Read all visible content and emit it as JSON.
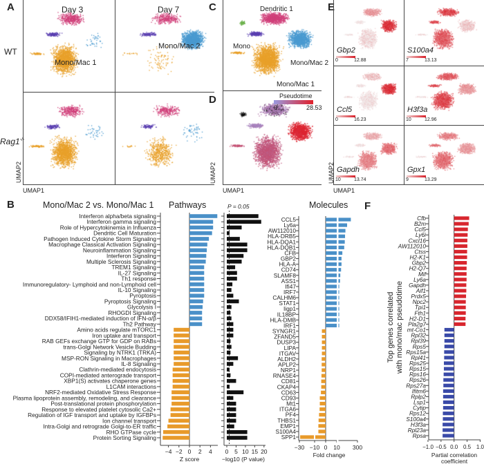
{
  "panel_labels": {
    "A": "A",
    "B": "B",
    "C": "C",
    "D": "D",
    "E": "E",
    "F": "F"
  },
  "panelA": {
    "col1": "Day 3",
    "col2": "Day 7",
    "row1": "WT",
    "row2": "Rag1",
    "row2_sup": "-/-",
    "cluster1": "Mono/Mac 1",
    "cluster2": "Mono/Mac 2",
    "xlabel": "UMAP1",
    "ylabel": "UMAP2"
  },
  "panelC": {
    "labels": [
      "Dendritic 1",
      "Mono",
      "Mono/Mac 2",
      "Mono/Mac 1"
    ]
  },
  "panelD": {
    "legend_title": "Pseudotime",
    "legend_min": "0",
    "legend_max": "28.53",
    "xlabel": "UMAP1",
    "ylabel": "UMAP2",
    "low_color": "#9a9ae0",
    "high_color": "#e0202a"
  },
  "panelE": {
    "xlabel": "UMAP1",
    "ylabel": "UMAP2",
    "genes": [
      {
        "name": "Gbp2",
        "min": "0",
        "max": "12.88"
      },
      {
        "name": "S100a4",
        "min": "7",
        "max": "13.13"
      },
      {
        "name": "Ccl5",
        "min": "0",
        "max": "16.23"
      },
      {
        "name": "H3f3a",
        "min": "10",
        "max": "12.96"
      },
      {
        "name": "Gapdh",
        "min": "10",
        "max": "13.74"
      },
      {
        "name": "Gpx1",
        "min": "9",
        "max": "13.29"
      }
    ]
  },
  "cluster_colors": {
    "Mono/Mac 1": "#e8a02a",
    "Mono/Mac 2": "#4a9ad0",
    "Dendritic 1": "#d0407a",
    "Mono": "#5a3fb0",
    "Other": "#6ab04a"
  },
  "chart_data": [
    {
      "type": "bar",
      "orientation": "horizontal",
      "title": "Mono/Mac 2 vs. Mono/Mac 1",
      "subtitle": "Pathways",
      "xlabel": "Z score",
      "xlim": [
        -5,
        5
      ],
      "xticks": [
        "-4",
        "-2",
        "0",
        "2",
        "4"
      ],
      "categories": [
        "Interferon alpha/beta signaling",
        "Interferon gamma signaling",
        "Role of Hypercytokinemia in Influenza",
        "Dendritic Cell Maturation",
        "Pathogen Induced Cytokine Storm Signaling",
        "Macrophage Classical Activation Signaling",
        "Neuroinflammation Signaling",
        "Interferon Signaling",
        "Multiple Sclerosis Signaling",
        "TREM1 Signaling",
        "IL-27 Signaling",
        "Th1 response",
        "Immunoregulatory- Lymphoid and non-Lymphoid cell",
        "IL-10 Signaling",
        "Pyroptosis",
        "Pyroptosis Signaling",
        "Glycolysis I",
        "RHOGDI Signaling",
        "DDX58/IFIH1-mediated induction of IFN-α/β",
        "Th2 Pathway",
        "Amino acids regulate mTORC1",
        "Iron uptake and transport",
        "RAB GEFs exchange GTP for GDP on RABs",
        "trans-Golgi Network Vesicle Budding",
        "Signaling by NTRK1 (TRKA)",
        "MSP-RON Signaling in Macrophages",
        "IL-8 Signaling",
        "Clathrin-mediated endocytosis",
        "COPI-mediated anterograde transport",
        "XBP1(S) activates chaperone genes",
        "L1CAM interactions",
        "NRF2-mediated Oxidative Stress Response",
        "Plasma lipoprotein assembly, remodeling, and clearance",
        "Post-translational protein phosphorylation",
        "Response to elevated platelet cytosolic Ca2+",
        "Regulation of IGF transport and uptake by IGFBPs",
        "Ion channel transport",
        "Intra-Golgi and retrograde Golgi-to-ER traffic",
        "RHO GTPase cycle",
        "Protein Sorting Signaling"
      ],
      "values": [
        5.3,
        4.5,
        4.5,
        4.3,
        3.7,
        3.4,
        3.3,
        3.2,
        3.1,
        2.8,
        2.8,
        2.8,
        2.8,
        2.8,
        2.8,
        2.6,
        2.5,
        2.4,
        2.4,
        2.4,
        -3.0,
        -3.0,
        -3.0,
        -3.0,
        -3.0,
        -3.0,
        -3.0,
        -3.2,
        -3.2,
        -3.2,
        -3.2,
        -3.4,
        -3.4,
        -3.4,
        -3.6,
        -3.6,
        -4.0,
        -4.2,
        -5.0,
        -5.1
      ],
      "pos_color": "#4a90c8",
      "neg_color": "#e89a2a"
    },
    {
      "type": "bar",
      "orientation": "horizontal",
      "xlabel": "−log10 (P value)",
      "annotation": "P = 0.05",
      "threshold": 1.3,
      "xlim": [
        0,
        20
      ],
      "xticks": [
        "0",
        "5",
        "10",
        "15",
        "20"
      ],
      "values": [
        17,
        18.5,
        8,
        1.5,
        7,
        11,
        11,
        9,
        8,
        4.5,
        5.5,
        5.5,
        3,
        2.5,
        3.5,
        6.5,
        2.5,
        2,
        2.5,
        3.5,
        3.5,
        3.5,
        2,
        2.5,
        2,
        6,
        3.5,
        1.5,
        2,
        5,
        1.5,
        9,
        3.5,
        5,
        5,
        5,
        5,
        4,
        11,
        11
      ],
      "color": "#111111"
    },
    {
      "type": "bar",
      "orientation": "horizontal",
      "title": "Molecules",
      "xlabel": "Fold change",
      "axis_break": true,
      "xticks": [
        "-30",
        "-10",
        "0",
        "10",
        "300"
      ],
      "categories": [
        "CCL5",
        "Ly6a",
        "AW112010",
        "HLA-DRB5",
        "HLA-DQA1",
        "HLA-DQB1",
        "CFB",
        "GBP2",
        "HLA-A",
        "CD74",
        "SLAMF8",
        "ASS1",
        "Ifi47",
        "IRF7",
        "CALHM6",
        "STAT1",
        "Iigp1",
        "IL18BP",
        "HLA-DMB",
        "IRF1",
        "SYNGR1",
        "ZFAND5",
        "DUSP3",
        "LIPA",
        "ITGAV",
        "ALDH2",
        "APLP2",
        "NRP1",
        "RNASE4",
        "CD81",
        "CKAP4",
        "CD63",
        "CD93",
        "Mt1",
        "ITGA6",
        "PF4",
        "THBS1",
        "EMP1",
        "S100A4",
        "SPP1"
      ],
      "values": [
        197,
        139,
        113,
        107,
        103,
        94,
        65,
        52,
        52,
        45,
        33,
        29,
        16,
        16,
        16,
        16,
        16,
        16,
        16,
        16,
        -3.4,
        -3.4,
        -3.4,
        -3.4,
        -3.4,
        -3.6,
        -3.6,
        -3.6,
        -3.8,
        -4,
        -4,
        -4.3,
        -5.3,
        -5.3,
        -5.5,
        -6,
        -6.4,
        -6.6,
        -6.6,
        -29
      ],
      "pos_color": "#4a90c8",
      "neg_color": "#e89a2a"
    },
    {
      "type": "bar",
      "orientation": "horizontal",
      "ylabel": "Top genes correlated with mono/mac pseudotime",
      "xlabel": "Partial correlation coefficient",
      "xlim": [
        -1,
        1
      ],
      "xticks": [
        "-1.0",
        "-0.5",
        "0.0",
        "0.5",
        "1.0"
      ],
      "categories": [
        "Cfb",
        "B2m",
        "Ccl5",
        "Ly6i",
        "Cxcl16",
        "AW112010",
        "Ctss",
        "H2-K1",
        "Gbp2",
        "H2-Q7",
        "Mif",
        "Ly6a",
        "Gapdh",
        "Aif1",
        "Prdx5",
        "Npc2",
        "Tpi1",
        "Fth1",
        "H2-D1",
        "Pla2g7",
        "mt-Co1",
        "Rpl32",
        "Rpl39",
        "Rps5",
        "Rps15a",
        "Rpl41",
        "Rps25",
        "Rps15",
        "Rps16",
        "Rps26",
        "Rps27a",
        "Ifitm6",
        "Rplp2",
        "Lsp1",
        "Cytip",
        "Rps12",
        "S100a4",
        "H3f3a",
        "Rpl23a",
        "Rpsa"
      ],
      "values": [
        0.58,
        0.56,
        0.53,
        0.52,
        0.51,
        0.51,
        0.5,
        0.5,
        0.49,
        0.48,
        0.48,
        0.48,
        0.47,
        0.47,
        0.46,
        0.45,
        0.45,
        0.45,
        0.44,
        0.44,
        -0.37,
        -0.37,
        -0.37,
        -0.37,
        -0.38,
        -0.38,
        -0.39,
        -0.39,
        -0.4,
        -0.41,
        -0.41,
        -0.42,
        -0.42,
        -0.42,
        -0.42,
        -0.43,
        -0.43,
        -0.44,
        -0.44,
        -0.44
      ],
      "pos_color": "#d8262e",
      "neg_color": "#3a4aa8"
    }
  ]
}
